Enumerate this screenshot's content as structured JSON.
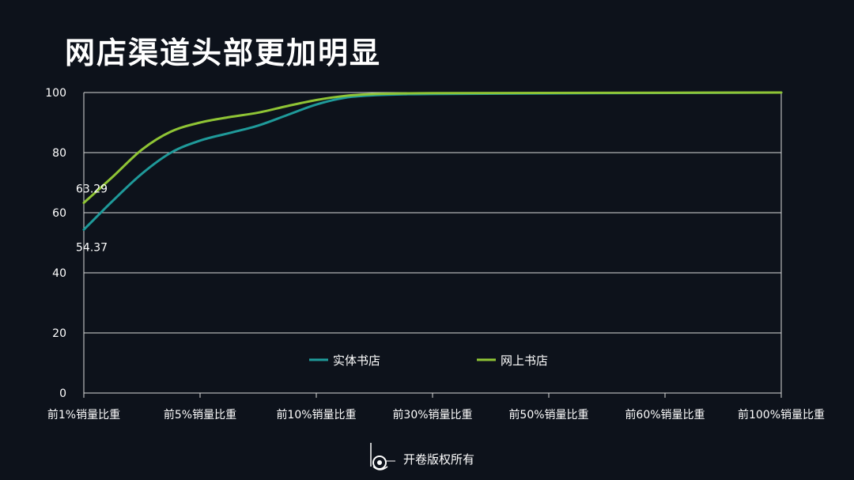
{
  "title": "网店渠道头部更加明显",
  "footer": {
    "text": "开卷版权所有",
    "logo_icon": "kaijuan-logo-icon"
  },
  "colors": {
    "background": "#0d121b",
    "grid": "#d9d9d9",
    "physical": "#1f9a9a",
    "online": "#8fc435"
  },
  "chart_data": {
    "type": "line",
    "categories": [
      "前1%销量比重",
      "前5%销量比重",
      "前10%销量比重",
      "前30%销量比重",
      "前50%销量比重",
      "前60%销量比重",
      "前100%销量比重"
    ],
    "x_subdivisions": 12,
    "ylim": [
      0,
      100
    ],
    "yticks": [
      "0",
      "20",
      "40",
      "60",
      "80",
      "100"
    ],
    "grid": true,
    "legend_position": "bottom-center",
    "series": [
      {
        "name": "实体书店",
        "color": "#1f9a9a",
        "points": [
          [
            0,
            54.37
          ],
          [
            1,
            64
          ],
          [
            2,
            73
          ],
          [
            3,
            80
          ],
          [
            4,
            84
          ],
          [
            5,
            86.5
          ],
          [
            6,
            89
          ],
          [
            7,
            92.5
          ],
          [
            8,
            96
          ],
          [
            9,
            98.3
          ],
          [
            10,
            99.1
          ],
          [
            11,
            99.4
          ],
          [
            12,
            99.5
          ],
          [
            18,
            99.8
          ],
          [
            24,
            100
          ]
        ],
        "first_label": "54.37"
      },
      {
        "name": "网上书店",
        "color": "#8fc435",
        "points": [
          [
            0,
            63.29
          ],
          [
            1,
            72
          ],
          [
            2,
            81
          ],
          [
            3,
            87
          ],
          [
            4,
            90
          ],
          [
            5,
            91.8
          ],
          [
            6,
            93.3
          ],
          [
            7,
            95.5
          ],
          [
            8,
            97.5
          ],
          [
            9,
            98.9
          ],
          [
            10,
            99.5
          ],
          [
            11,
            99.7
          ],
          [
            12,
            99.8
          ],
          [
            18,
            99.9
          ],
          [
            24,
            100
          ]
        ],
        "first_label": "63.29"
      }
    ]
  }
}
